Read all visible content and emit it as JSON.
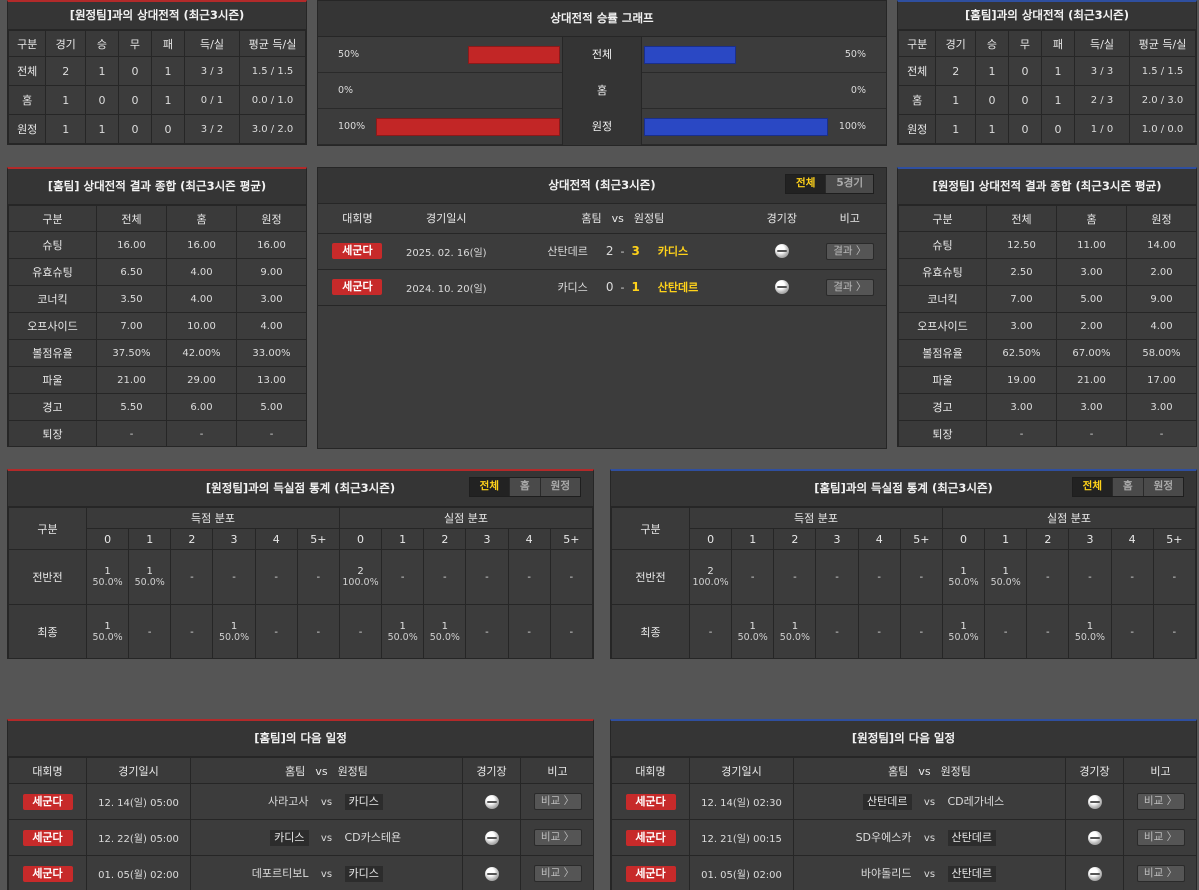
{
  "h2h_away": {
    "title": "[원정팀]과의 상대전적 (최근3시즌)",
    "headers": [
      "구분",
      "경기",
      "승",
      "무",
      "패",
      "득/실",
      "평균 득/실"
    ],
    "rows": [
      [
        "전체",
        "2",
        "1",
        "0",
        "1",
        "3 / 3",
        "1.5 / 1.5"
      ],
      [
        "홈",
        "1",
        "0",
        "0",
        "1",
        "0 / 1",
        "0.0 / 1.0"
      ],
      [
        "원정",
        "1",
        "1",
        "0",
        "0",
        "3 / 2",
        "3.0 / 2.0"
      ]
    ]
  },
  "h2h_home": {
    "title": "[홈팀]과의 상대전적 (최근3시즌)",
    "headers": [
      "구분",
      "경기",
      "승",
      "무",
      "패",
      "득/실",
      "평균 득/실"
    ],
    "rows": [
      [
        "전체",
        "2",
        "1",
        "0",
        "1",
        "3 / 3",
        "1.5 / 1.5"
      ],
      [
        "홈",
        "1",
        "0",
        "0",
        "1",
        "2 / 3",
        "2.0 / 3.0"
      ],
      [
        "원정",
        "1",
        "1",
        "0",
        "0",
        "1 / 0",
        "1.0 / 0.0"
      ]
    ]
  },
  "graph": {
    "title": "상대전적 승률 그래프",
    "rows": [
      {
        "label": "전체",
        "left_text": "50%",
        "right_text": "50%",
        "left": 50,
        "right": 50
      },
      {
        "label": "홈",
        "left_text": "0%",
        "right_text": "0%",
        "left": 0,
        "right": 0
      },
      {
        "label": "원정",
        "left_text": "100%",
        "right_text": "100%",
        "left": 100,
        "right": 100
      }
    ]
  },
  "summary_home": {
    "title": "[홈팀] 상대전적 결과 종합 (최근3시즌 평균)",
    "headers": [
      "구분",
      "전체",
      "홈",
      "원정"
    ],
    "rows": [
      [
        "슈팅",
        "16.00",
        "16.00",
        "16.00"
      ],
      [
        "유효슈팅",
        "6.50",
        "4.00",
        "9.00"
      ],
      [
        "코너킥",
        "3.50",
        "4.00",
        "3.00"
      ],
      [
        "오프사이드",
        "7.00",
        "10.00",
        "4.00"
      ],
      [
        "볼점유율",
        "37.50%",
        "42.00%",
        "33.00%"
      ],
      [
        "파울",
        "21.00",
        "29.00",
        "13.00"
      ],
      [
        "경고",
        "5.50",
        "6.00",
        "5.00"
      ],
      [
        "퇴장",
        "-",
        "-",
        "-"
      ]
    ]
  },
  "summary_away": {
    "title": "[원정팀] 상대전적 결과 종합 (최근3시즌 평균)",
    "headers": [
      "구분",
      "전체",
      "홈",
      "원정"
    ],
    "rows": [
      [
        "슈팅",
        "12.50",
        "11.00",
        "14.00"
      ],
      [
        "유효슈팅",
        "2.50",
        "3.00",
        "2.00"
      ],
      [
        "코너킥",
        "7.00",
        "5.00",
        "9.00"
      ],
      [
        "오프사이드",
        "3.00",
        "2.00",
        "4.00"
      ],
      [
        "볼점유율",
        "62.50%",
        "67.00%",
        "58.00%"
      ],
      [
        "파울",
        "19.00",
        "21.00",
        "17.00"
      ],
      [
        "경고",
        "3.00",
        "3.00",
        "3.00"
      ],
      [
        "퇴장",
        "-",
        "-",
        "-"
      ]
    ]
  },
  "matches": {
    "title": "상대전적 (최근3시즌)",
    "tabs": [
      "전체",
      "5경기"
    ],
    "headers": {
      "league": "대회명",
      "date": "경기일시",
      "home": "홈팀",
      "vs": "vs",
      "away": "원정팀",
      "venue": "경기장",
      "note": "비고"
    },
    "dash": "-",
    "rows": [
      {
        "league": "세군다",
        "date": "2025. 02. 16(일)",
        "home": "산탄데르",
        "home_score": "2",
        "away_score": "3",
        "away": "카디스",
        "btn": "결과 〉"
      },
      {
        "league": "세군다",
        "date": "2024. 10. 20(일)",
        "home": "카디스",
        "home_score": "0",
        "away_score": "1",
        "away": "산탄데르",
        "btn": "결과 〉"
      }
    ]
  },
  "goals_left": {
    "title": "[원정팀]과의 득실점 통계 (최근3시즌)",
    "tabs": [
      "전체",
      "홈",
      "원정"
    ],
    "col_label": "구분",
    "scored": "득점 분포",
    "conceded": "실점 분포",
    "buckets": [
      "0",
      "1",
      "2",
      "3",
      "4",
      "5+"
    ],
    "rows": [
      {
        "label": "전반전",
        "cells": [
          [
            "1",
            "50.0%"
          ],
          [
            "1",
            "50.0%"
          ],
          [
            "-",
            ""
          ],
          [
            "-",
            ""
          ],
          [
            "-",
            ""
          ],
          [
            "-",
            ""
          ],
          [
            "2",
            "100.0%"
          ],
          [
            "-",
            ""
          ],
          [
            "-",
            ""
          ],
          [
            "-",
            ""
          ],
          [
            "-",
            ""
          ],
          [
            "-",
            ""
          ]
        ]
      },
      {
        "label": "최종",
        "cells": [
          [
            "1",
            "50.0%"
          ],
          [
            "-",
            ""
          ],
          [
            "-",
            ""
          ],
          [
            "1",
            "50.0%"
          ],
          [
            "-",
            ""
          ],
          [
            "-",
            ""
          ],
          [
            "-",
            ""
          ],
          [
            "1",
            "50.0%"
          ],
          [
            "1",
            "50.0%"
          ],
          [
            "-",
            ""
          ],
          [
            "-",
            ""
          ],
          [
            "-",
            ""
          ]
        ]
      }
    ]
  },
  "goals_right": {
    "title": "[홈팀]과의 득실점 통계 (최근3시즌)",
    "tabs": [
      "전체",
      "홈",
      "원정"
    ],
    "col_label": "구분",
    "scored": "득점 분포",
    "conceded": "실점 분포",
    "buckets": [
      "0",
      "1",
      "2",
      "3",
      "4",
      "5+"
    ],
    "rows": [
      {
        "label": "전반전",
        "cells": [
          [
            "2",
            "100.0%"
          ],
          [
            "-",
            ""
          ],
          [
            "-",
            ""
          ],
          [
            "-",
            ""
          ],
          [
            "-",
            ""
          ],
          [
            "-",
            ""
          ],
          [
            "1",
            "50.0%"
          ],
          [
            "1",
            "50.0%"
          ],
          [
            "-",
            ""
          ],
          [
            "-",
            ""
          ],
          [
            "-",
            ""
          ],
          [
            "-",
            ""
          ]
        ]
      },
      {
        "label": "최종",
        "cells": [
          [
            "-",
            ""
          ],
          [
            "1",
            "50.0%"
          ],
          [
            "1",
            "50.0%"
          ],
          [
            "-",
            ""
          ],
          [
            "-",
            ""
          ],
          [
            "-",
            ""
          ],
          [
            "1",
            "50.0%"
          ],
          [
            "-",
            ""
          ],
          [
            "-",
            ""
          ],
          [
            "1",
            "50.0%"
          ],
          [
            "-",
            ""
          ],
          [
            "-",
            ""
          ]
        ]
      }
    ]
  },
  "next_home": {
    "title": "[홈팀]의 다음 일정",
    "headers": {
      "league": "대회명",
      "date": "경기일시",
      "home": "홈팀",
      "vs": "vs",
      "away": "원정팀",
      "venue": "경기장",
      "note": "비고"
    },
    "rows": [
      {
        "league": "세군다",
        "date": "12. 14(일) 05:00",
        "home": "사라고사",
        "away": "카디스",
        "btn": "비교 〉",
        "boxed": "away"
      },
      {
        "league": "세군다",
        "date": "12. 22(월) 05:00",
        "home": "카디스",
        "away": "CD카스테욘",
        "btn": "비교 〉",
        "boxed": "home"
      },
      {
        "league": "세군다",
        "date": "01. 05(월) 02:00",
        "home": "데포르티보L",
        "away": "카디스",
        "btn": "비교 〉",
        "boxed": "away"
      }
    ]
  },
  "next_away": {
    "title": "[원정팀]의 다음 일정",
    "headers": {
      "league": "대회명",
      "date": "경기일시",
      "home": "홈팀",
      "vs": "vs",
      "away": "원정팀",
      "venue": "경기장",
      "note": "비고"
    },
    "rows": [
      {
        "league": "세군다",
        "date": "12. 14(일) 02:30",
        "home": "산탄데르",
        "away": "CD레가네스",
        "btn": "비교 〉",
        "boxed": "home"
      },
      {
        "league": "세군다",
        "date": "12. 21(일) 00:15",
        "home": "SD우에스카",
        "away": "산탄데르",
        "btn": "비교 〉",
        "boxed": "away"
      },
      {
        "league": "세군다",
        "date": "01. 05(월) 02:00",
        "home": "바야돌리드",
        "away": "산탄데르",
        "btn": "비교 〉",
        "boxed": "away"
      }
    ]
  }
}
